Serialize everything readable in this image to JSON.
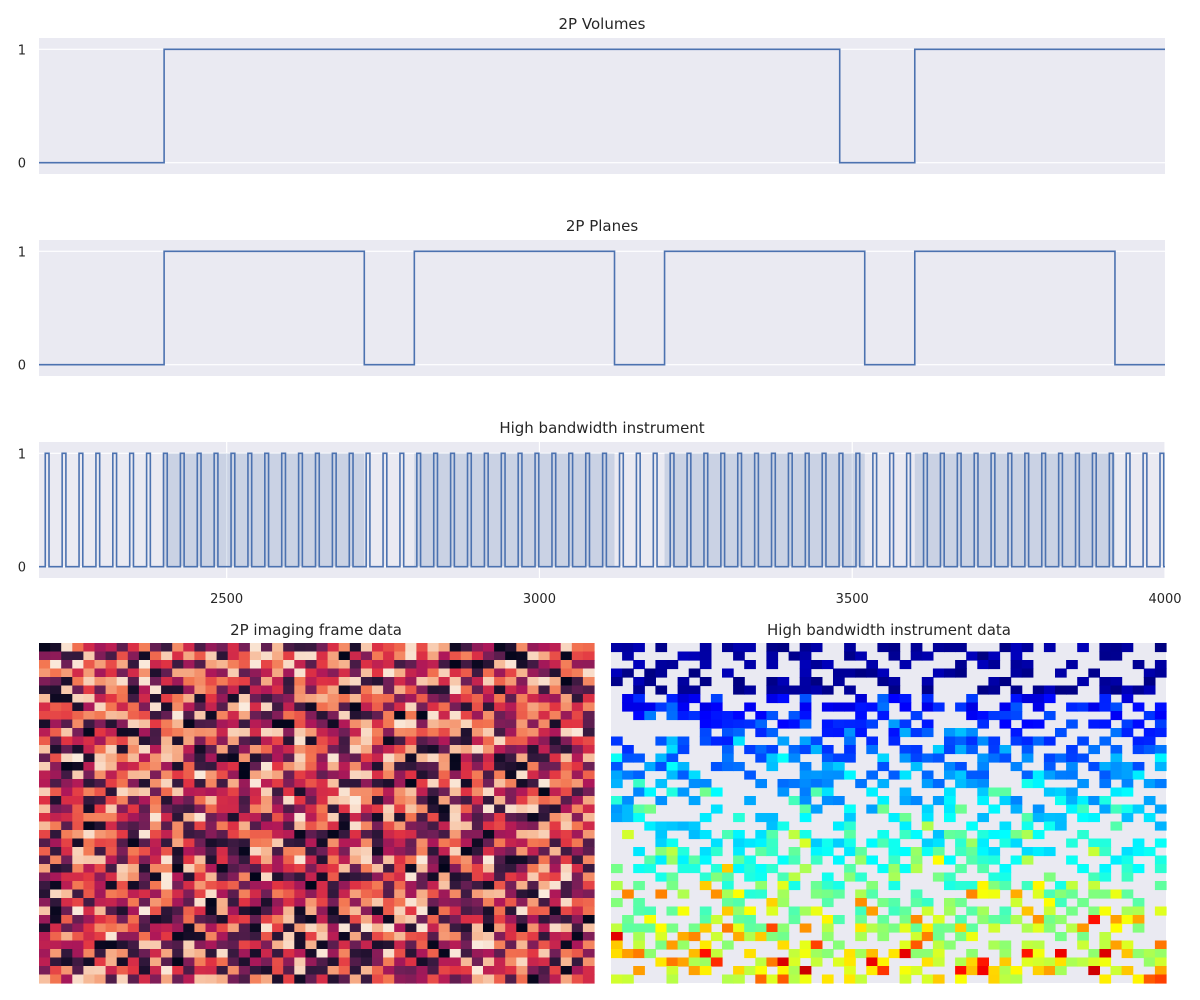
{
  "colors": {
    "axes_bg": "#eaeaf2",
    "grid": "#ffffff",
    "line": "#4c72b0",
    "text": "#262626",
    "page_bg": "#ffffff"
  },
  "chart_data": [
    {
      "type": "line",
      "drawstyle": "steps-post",
      "title": "2P Volumes",
      "xlim": [
        2200,
        4000
      ],
      "ylim": [
        -0.1,
        1.1
      ],
      "yticks": [
        0,
        1
      ],
      "xticks": [],
      "grid": true,
      "series": [
        {
          "x": [
            2200,
            2400,
            3480,
            3600,
            4000
          ],
          "y": [
            0,
            1,
            0,
            1,
            1
          ]
        }
      ]
    },
    {
      "type": "line",
      "drawstyle": "steps-post",
      "title": "2P Planes",
      "xlim": [
        2200,
        4000
      ],
      "ylim": [
        -0.1,
        1.1
      ],
      "yticks": [
        0,
        1
      ],
      "xticks": [],
      "grid": true,
      "series": [
        {
          "x": [
            2200,
            2400,
            2720,
            2800,
            3120,
            3200,
            3520,
            3600,
            3920,
            4000
          ],
          "y": [
            0,
            1,
            0,
            1,
            0,
            1,
            0,
            1,
            0,
            0
          ]
        }
      ]
    },
    {
      "type": "line",
      "drawstyle": "steps-post",
      "title": "High bandwidth instrument",
      "xlim": [
        2200,
        4000
      ],
      "ylim": [
        -0.1,
        1.1
      ],
      "yticks": [
        0,
        1
      ],
      "xticks": [
        2500,
        3000,
        3500,
        4000
      ],
      "xticklabels": [
        "2500",
        "3000",
        "3500",
        "4000"
      ],
      "grid": true,
      "pulse_train": {
        "first_rise": 2210,
        "period": 27,
        "high_duration": 6,
        "end": 4000
      },
      "shaded_spans": [
        [
          2400,
          2720
        ],
        [
          2800,
          3120
        ],
        [
          3200,
          3520
        ],
        [
          3600,
          3920
        ]
      ],
      "shaded_color": "#4c72b0",
      "shaded_alpha": 0.2
    },
    {
      "type": "heatmap",
      "title": "2P imaging frame data",
      "colormap": "rocket",
      "rows": 40,
      "cols": 50,
      "vmin": 0,
      "vmax": 1,
      "distribution": "uniform random",
      "seed": 7
    },
    {
      "type": "heatmap",
      "title": "High bandwidth instrument data",
      "colormap": "jet",
      "rows": 40,
      "cols": 50,
      "vmin": 0,
      "vmax": 1,
      "distribution": "sparse, values increase toward bottom rows",
      "seed": 11
    }
  ]
}
